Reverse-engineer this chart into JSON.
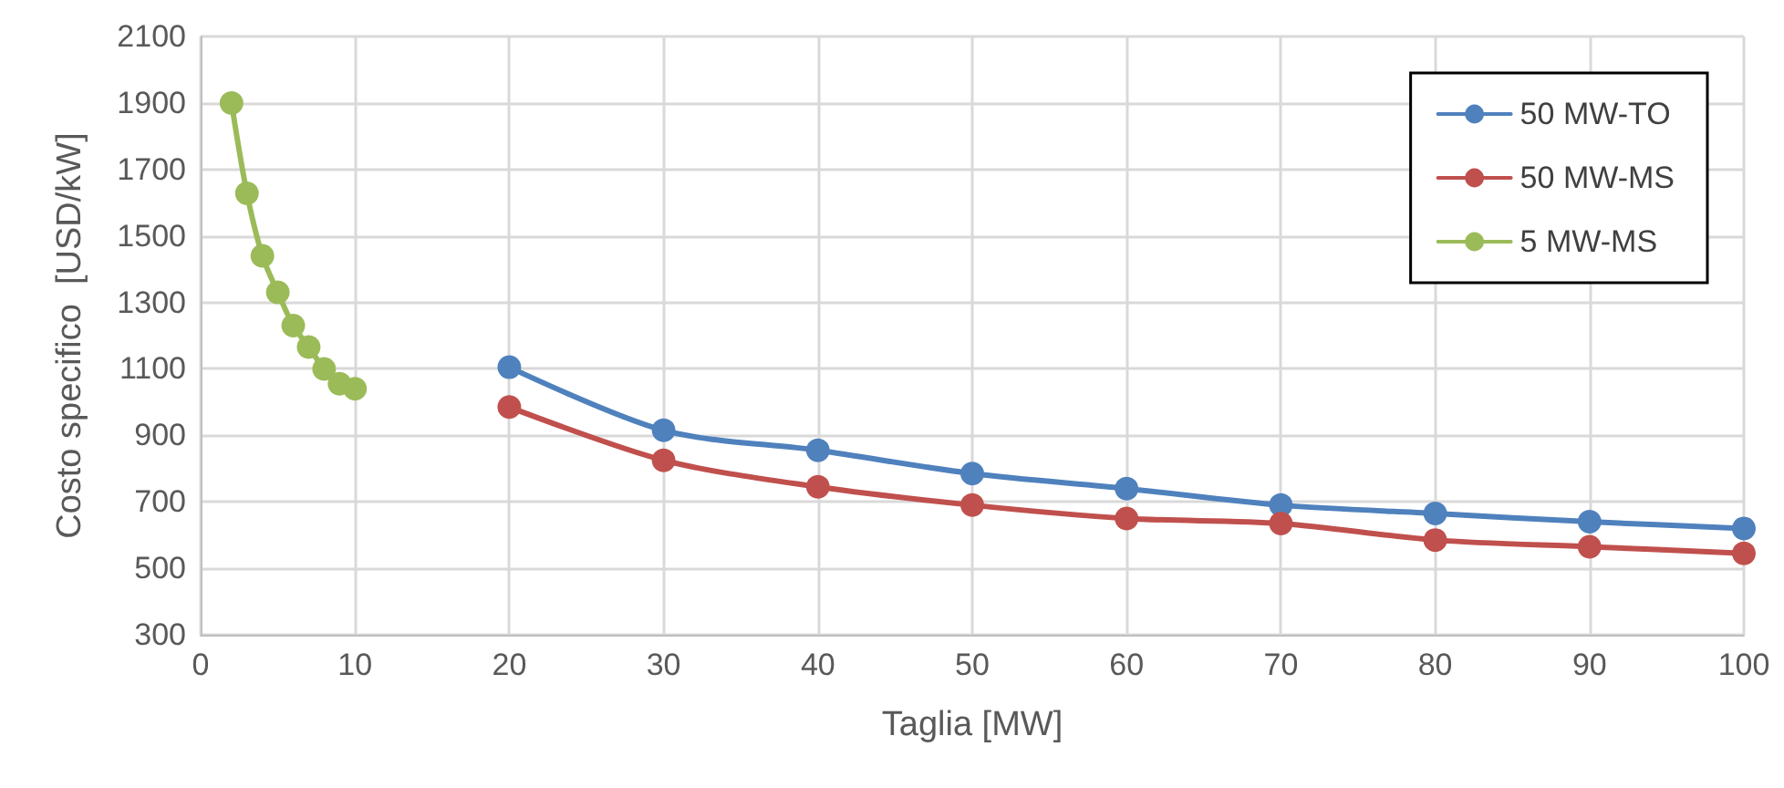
{
  "chart_data": {
    "type": "line",
    "xlabel": "Taglia [MW]",
    "ylabel": "Costo specifico  [USD/kW]",
    "xlim": [
      0,
      100
    ],
    "xticks": [
      0,
      10,
      20,
      30,
      40,
      50,
      60,
      70,
      80,
      90,
      100
    ],
    "ylim": [
      300,
      2100
    ],
    "yticks": [
      300,
      500,
      700,
      900,
      1100,
      1300,
      1500,
      1700,
      1900,
      2100
    ],
    "grid": true,
    "legend": "top right",
    "marker": "circle",
    "line_style": "solid",
    "series": [
      {
        "name": "50 MW-TO",
        "color": "#4f81bd",
        "x": [
          20,
          30,
          40,
          50,
          60,
          70,
          80,
          90,
          100
        ],
        "values": [
          1105,
          915,
          855,
          785,
          740,
          690,
          665,
          640,
          620
        ]
      },
      {
        "name": "50 MW-MS",
        "color": "#c0504d",
        "x": [
          20,
          30,
          40,
          50,
          60,
          70,
          80,
          90,
          100
        ],
        "values": [
          985,
          825,
          745,
          690,
          650,
          635,
          585,
          565,
          545
        ]
      },
      {
        "name": "5 MW-MS",
        "color": "#9bbb59",
        "x": [
          2,
          3,
          4,
          5,
          6,
          7,
          8,
          9,
          10
        ],
        "values": [
          1900,
          1628,
          1440,
          1330,
          1230,
          1166,
          1100,
          1055,
          1040
        ]
      }
    ]
  }
}
